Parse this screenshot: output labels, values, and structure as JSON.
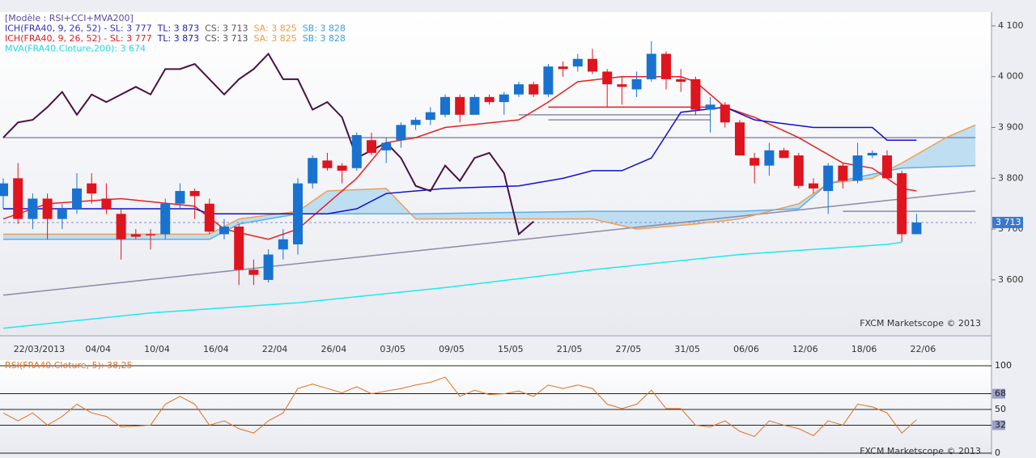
{
  "chart_data": [
    {
      "type": "candlestick",
      "header": [
        [
          {
            "text": "[Modèle : RSI+CCI+MVA200]",
            "color": "#5a4aa0"
          }
        ],
        [
          {
            "text": "ICH(FRA40, 9, 26, 52) -  SL: 3 777",
            "color": "#3030c0"
          },
          {
            "text": "TL: 3 873",
            "color": "#2020b0"
          },
          {
            "text": "CS: 3 713",
            "color": "#555555"
          },
          {
            "text": "SA: 3 825",
            "color": "#f09a40"
          },
          {
            "text": "SB: 3 828",
            "color": "#3aa0e0"
          }
        ],
        [
          {
            "text": "ICH(FRA40, 9, 26, 52) -  SL: 3 777",
            "color": "#e02020"
          },
          {
            "text": "TL: 3 873",
            "color": "#2020b0"
          },
          {
            "text": "CS: 3 713",
            "color": "#555555"
          },
          {
            "text": "SA: 3 825",
            "color": "#f09a40"
          },
          {
            "text": "SB: 3 828",
            "color": "#3aa0e0"
          }
        ],
        [
          {
            "text": "MVA(FRA40.Cloture,200): 3 674",
            "color": "#20d8e8"
          }
        ]
      ],
      "categories": [
        null,
        null,
        "22/03/2013",
        null,
        null,
        null,
        "04/04",
        null,
        null,
        null,
        "10/04",
        null,
        null,
        null,
        "16/04",
        null,
        null,
        null,
        "22/04",
        null,
        null,
        null,
        "26/04",
        null,
        null,
        null,
        "03/05",
        null,
        null,
        null,
        "09/05",
        null,
        null,
        null,
        "15/05",
        null,
        null,
        null,
        "21/05",
        null,
        null,
        null,
        "27/05",
        null,
        null,
        null,
        "31/05",
        null,
        null,
        null,
        "06/06",
        null,
        null,
        null,
        "12/06",
        null,
        null,
        null,
        "18/06",
        null,
        null,
        null,
        "22/06"
      ],
      "open": [
        3765,
        3800,
        3720,
        3760,
        3720,
        3740,
        3790,
        3760,
        3730,
        3690,
        3690,
        3690,
        3750,
        3775,
        3750,
        3690,
        3705,
        3620,
        3600,
        3660,
        3670,
        3790,
        3835,
        3825,
        3820,
        3875,
        3855,
        3875,
        3905,
        3915,
        3925,
        3960,
        3925,
        3960,
        3950,
        3965,
        3985,
        3965,
        4020,
        4020,
        4035,
        4010,
        3985,
        3975,
        3995,
        4045,
        3995,
        3995,
        3935,
        3945,
        3910,
        3840,
        3825,
        3855,
        3845,
        3790,
        3775,
        3825,
        3795,
        3845,
        3845,
        3810,
        3690
      ],
      "high": [
        3800,
        3830,
        3770,
        3770,
        3750,
        3810,
        3810,
        3790,
        3740,
        3700,
        3700,
        3760,
        3790,
        3780,
        3760,
        3720,
        3710,
        3640,
        3660,
        3700,
        3800,
        3845,
        3850,
        3830,
        3890,
        3890,
        3880,
        3910,
        3920,
        3940,
        3965,
        3965,
        3965,
        3965,
        3970,
        3990,
        3990,
        4025,
        4030,
        4045,
        4055,
        4015,
        4000,
        4010,
        4070,
        4050,
        4015,
        4000,
        3960,
        3950,
        3915,
        3850,
        3870,
        3860,
        3850,
        3800,
        3830,
        3830,
        3870,
        3855,
        3855,
        3815,
        3730
      ],
      "low": [
        3740,
        3710,
        3700,
        3680,
        3700,
        3730,
        3750,
        3730,
        3640,
        3680,
        3660,
        3680,
        3740,
        3720,
        3690,
        3680,
        3590,
        3590,
        3595,
        3640,
        3650,
        3780,
        3815,
        3790,
        3815,
        3845,
        3830,
        3860,
        3895,
        3905,
        3920,
        3910,
        3925,
        3945,
        3925,
        3960,
        3960,
        3960,
        4000,
        4010,
        4005,
        3940,
        3945,
        3960,
        3990,
        3975,
        3970,
        3925,
        3890,
        3900,
        3845,
        3790,
        3805,
        3840,
        3780,
        3770,
        3730,
        3780,
        3790,
        3840,
        3800,
        3675,
        3690
      ],
      "close": [
        3790,
        3720,
        3760,
        3720,
        3740,
        3780,
        3770,
        3740,
        3680,
        3685,
        3688,
        3750,
        3775,
        3765,
        3695,
        3705,
        3620,
        3610,
        3650,
        3680,
        3790,
        3840,
        3820,
        3815,
        3885,
        3850,
        3870,
        3905,
        3915,
        3930,
        3960,
        3925,
        3960,
        3950,
        3965,
        3985,
        3965,
        4020,
        4015,
        4035,
        4010,
        3985,
        3980,
        3995,
        4045,
        3995,
        3990,
        3935,
        3945,
        3910,
        3845,
        3825,
        3855,
        3840,
        3785,
        3780,
        3825,
        3795,
        3845,
        3850,
        3800,
        3690,
        3713
      ],
      "up_color": "#1a72d0",
      "down_color": "#e0141e",
      "series": [
        {
          "color": "#8a8aaa",
          "x": [
            0,
            66
          ],
          "values": [
            3570,
            3775
          ]
        },
        {
          "color": "#20e8f0",
          "x": [
            0,
            10,
            20,
            30,
            40,
            50,
            60,
            61
          ],
          "values": [
            3505,
            3535,
            3555,
            3585,
            3620,
            3650,
            3670,
            3674
          ]
        },
        {
          "color": "#f0a050",
          "x": [
            0,
            8,
            14,
            16,
            20,
            22,
            26,
            28,
            40,
            43,
            47,
            50,
            54,
            56,
            59,
            61,
            64,
            66
          ],
          "values": [
            3690,
            3690,
            3690,
            3720,
            3735,
            3775,
            3780,
            3720,
            3720,
            3700,
            3710,
            3720,
            3750,
            3790,
            3800,
            3830,
            3880,
            3905
          ]
        },
        {
          "color": "#5ab0e8",
          "x": [
            0,
            14,
            16,
            20,
            22,
            28,
            40,
            50,
            54,
            56,
            61,
            66
          ],
          "values": [
            3680,
            3680,
            3710,
            3730,
            3730,
            3730,
            3735,
            3735,
            3740,
            3790,
            3820,
            3825
          ]
        },
        {
          "color": "#e82020",
          "x": [
            0,
            3,
            8,
            13,
            15,
            18,
            20,
            22,
            24,
            26,
            28,
            30,
            35,
            37,
            39,
            42,
            46,
            47,
            49,
            51,
            54,
            57,
            59,
            61,
            62
          ],
          "values": [
            3720,
            3750,
            3760,
            3745,
            3700,
            3680,
            3700,
            3750,
            3800,
            3870,
            3880,
            3900,
            3915,
            3950,
            3990,
            4000,
            4000,
            3990,
            3940,
            3920,
            3880,
            3830,
            3820,
            3780,
            3775
          ]
        },
        {
          "color": "#1010d0",
          "x": [
            0,
            13,
            14,
            22,
            24,
            26,
            30,
            35,
            38,
            40,
            42,
            44,
            46,
            49,
            51,
            55,
            59,
            60,
            62
          ],
          "values": [
            3740,
            3740,
            3730,
            3730,
            3740,
            3770,
            3780,
            3785,
            3800,
            3815,
            3815,
            3840,
            3930,
            3940,
            3915,
            3900,
            3900,
            3875,
            3875
          ]
        },
        {
          "color": "#4a1048",
          "x": [
            0,
            1,
            2,
            3,
            4,
            5,
            6,
            7,
            8,
            9,
            10,
            11,
            12,
            13,
            14,
            15,
            16,
            17,
            18,
            19,
            20,
            21,
            22,
            23,
            24,
            25,
            26,
            27,
            28,
            29,
            30,
            31,
            32,
            33,
            34,
            35,
            36
          ],
          "values": [
            3880,
            3910,
            3915,
            3940,
            3970,
            3925,
            3965,
            3950,
            3965,
            3980,
            3965,
            4015,
            4015,
            4025,
            3995,
            3965,
            3995,
            4015,
            4045,
            3995,
            3995,
            3935,
            3950,
            3920,
            3840,
            3855,
            3870,
            3840,
            3785,
            3775,
            3825,
            3795,
            3840,
            3850,
            3810,
            3690,
            3715
          ]
        }
      ],
      "levels": [
        {
          "value": 3880,
          "from": 0,
          "to": 66,
          "color": "#8a8aaa"
        },
        {
          "value": 3940,
          "from": 37,
          "to": 48,
          "color": "#e02020"
        },
        {
          "value": 3925,
          "from": 35,
          "to": 48,
          "color": "#8a8aaa"
        },
        {
          "value": 3915,
          "from": 37,
          "to": 48,
          "color": "#8a8aaa"
        },
        {
          "value": 3735,
          "from": 57,
          "to": 66,
          "color": "#8a8aaa"
        },
        {
          "value": 3713,
          "from": 0,
          "to": 66,
          "color": "#8a8ad0",
          "dash": true
        }
      ],
      "price_marker": {
        "value": 3713,
        "label": "3 713"
      },
      "ylim": [
        3490,
        4127
      ],
      "yticks": [
        {
          "value": 3600,
          "label": "3 600"
        },
        {
          "value": 3700,
          "label": "3 700"
        },
        {
          "value": 3800,
          "label": "3 800"
        },
        {
          "value": 3900,
          "label": "3 900"
        },
        {
          "value": 4000,
          "label": "4 000"
        },
        {
          "value": 4100,
          "label": "4 100"
        }
      ],
      "footer": "FXCM Marketscope © 2013"
    },
    {
      "type": "line",
      "title": "RSI(FRA40.Cloture, 5): 38,25",
      "color": "#e07020",
      "values": [
        46,
        37,
        46,
        32,
        42,
        56,
        46,
        42,
        30,
        31,
        32,
        56,
        65,
        56,
        32,
        37,
        28,
        23,
        37,
        46,
        74,
        79,
        74,
        69,
        76,
        68,
        71,
        74,
        78,
        81,
        87,
        65,
        72,
        67,
        68,
        71,
        65,
        78,
        74,
        78,
        74,
        56,
        51,
        56,
        72,
        51,
        51,
        32,
        30,
        37,
        25,
        19,
        37,
        32,
        28,
        20,
        37,
        32,
        56,
        53,
        46,
        23,
        38.25
      ],
      "ylim": [
        0,
        100
      ],
      "yticks": [
        0,
        32,
        50,
        68,
        100
      ],
      "highlight_ticks": [
        32,
        68
      ],
      "footer": "FXCM Marketscope © 2013"
    }
  ]
}
